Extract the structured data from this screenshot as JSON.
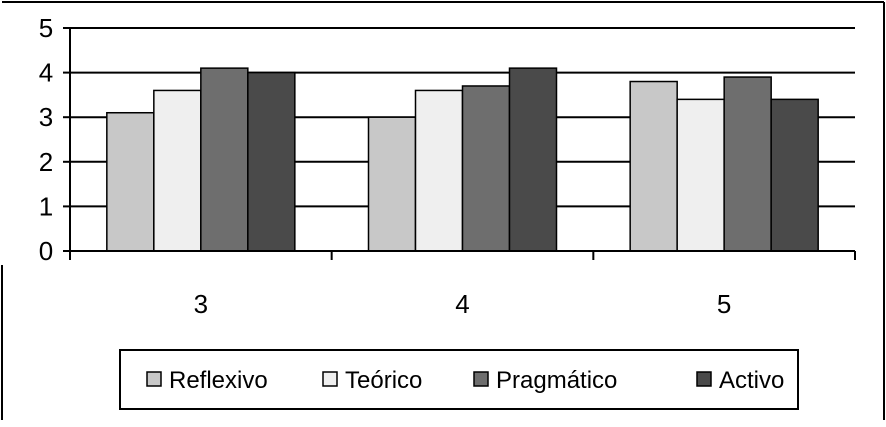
{
  "chart_data": {
    "type": "bar",
    "categories": [
      "3",
      "4",
      "5"
    ],
    "series": [
      {
        "name": "Reflexivo",
        "values": [
          3.1,
          3.0,
          3.8
        ],
        "color": "#c8c8c8"
      },
      {
        "name": "Teórico",
        "values": [
          3.6,
          3.6,
          3.4
        ],
        "color": "#efefef"
      },
      {
        "name": "Pragmático",
        "values": [
          4.1,
          3.7,
          3.9
        ],
        "color": "#6e6e6e"
      },
      {
        "name": "Activo",
        "values": [
          4.0,
          4.1,
          3.4
        ],
        "color": "#4a4a4a"
      }
    ],
    "y_ticks": [
      "0",
      "1",
      "2",
      "3",
      "4",
      "5"
    ],
    "ylim": [
      0,
      5
    ],
    "grid": true,
    "legend_position": "bottom"
  }
}
